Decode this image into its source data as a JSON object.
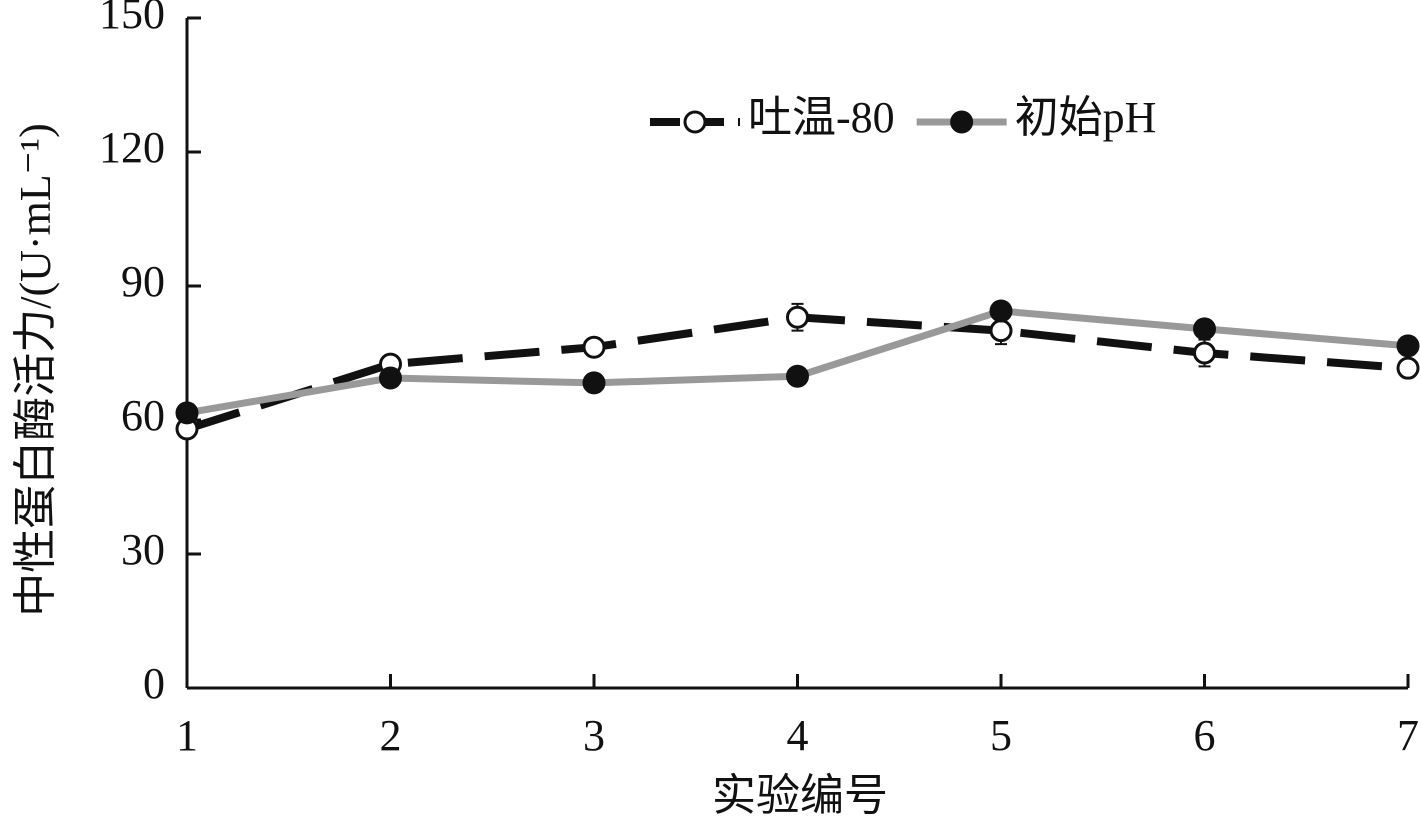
{
  "chart_data": {
    "type": "line",
    "x_label": "实验编号",
    "y_label": "中性蛋白酶活力/(U·mL⁻¹)",
    "x": [
      1,
      2,
      3,
      4,
      5,
      6,
      7
    ],
    "xlim": [
      1,
      7
    ],
    "xticks": [
      1,
      2,
      3,
      4,
      5,
      6,
      7
    ],
    "ylim": [
      0,
      150
    ],
    "yticks": [
      0,
      30,
      60,
      90,
      120,
      150
    ],
    "legend": "upper right",
    "series": [
      {
        "name": "吐温-80",
        "color": "#111111",
        "dash": true,
        "marker": "open",
        "values": [
          58,
          72.5,
          76.3,
          83,
          80,
          75,
          71.6
        ],
        "errors": [
          1,
          1,
          2,
          3,
          3,
          3,
          2
        ]
      },
      {
        "name": "初始pH",
        "color": "#999999",
        "dash": false,
        "marker": "filled",
        "values": [
          61.6,
          69.4,
          68.3,
          69.8,
          84.4,
          80.4,
          76.6
        ],
        "errors": [
          1,
          1,
          2,
          1,
          1,
          1,
          1
        ]
      }
    ]
  }
}
